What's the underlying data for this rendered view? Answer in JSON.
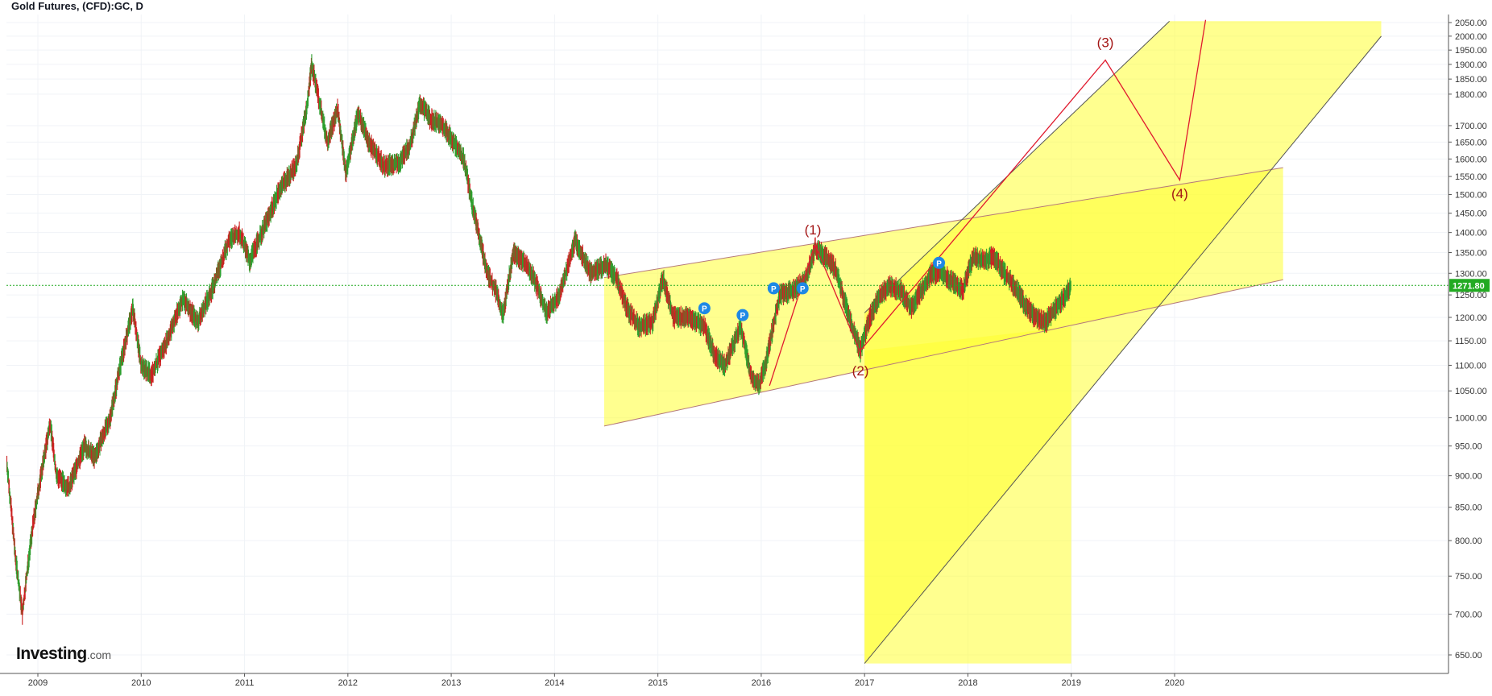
{
  "chart_data": {
    "type": "line",
    "title": "Gold Futures, (CFD):GC, D",
    "x_ticks": [
      "2009",
      "2010",
      "2011",
      "2012",
      "2013",
      "2014",
      "2015",
      "2016",
      "2017",
      "2018",
      "2019",
      "2020"
    ],
    "y_ticks": [
      "650.00",
      "700.00",
      "750.00",
      "800.00",
      "850.00",
      "900.00",
      "950.00",
      "1000.00",
      "1050.00",
      "1100.00",
      "1150.00",
      "1200.00",
      "1250.00",
      "1300.00",
      "1350.00",
      "1400.00",
      "1450.00",
      "1500.00",
      "1550.00",
      "1600.00",
      "1650.00",
      "1700.00",
      "1800.00",
      "1850.00",
      "1900.00",
      "1950.00",
      "2000.00",
      "2050.00"
    ],
    "xlim": [
      2008.7,
      2022.5
    ],
    "ylim": [
      620,
      2060
    ],
    "current_price": 1271.8,
    "current_price_label": "1271.80",
    "grid": true,
    "series": [
      {
        "values": [
          [
            2008.7,
            920
          ],
          [
            2008.78,
            780
          ],
          [
            2008.85,
            700
          ],
          [
            2008.95,
            820
          ],
          [
            2009.05,
            920
          ],
          [
            2009.12,
            990
          ],
          [
            2009.18,
            900
          ],
          [
            2009.3,
            880
          ],
          [
            2009.45,
            950
          ],
          [
            2009.55,
            930
          ],
          [
            2009.7,
            1000
          ],
          [
            2009.85,
            1150
          ],
          [
            2009.92,
            1220
          ],
          [
            2010.0,
            1100
          ],
          [
            2010.1,
            1080
          ],
          [
            2010.25,
            1150
          ],
          [
            2010.4,
            1240
          ],
          [
            2010.55,
            1190
          ],
          [
            2010.7,
            1270
          ],
          [
            2010.85,
            1380
          ],
          [
            2010.95,
            1400
          ],
          [
            2011.05,
            1330
          ],
          [
            2011.2,
            1420
          ],
          [
            2011.35,
            1520
          ],
          [
            2011.5,
            1580
          ],
          [
            2011.6,
            1750
          ],
          [
            2011.65,
            1900
          ],
          [
            2011.72,
            1780
          ],
          [
            2011.8,
            1650
          ],
          [
            2011.9,
            1750
          ],
          [
            2011.98,
            1560
          ],
          [
            2012.1,
            1740
          ],
          [
            2012.2,
            1650
          ],
          [
            2012.35,
            1580
          ],
          [
            2012.5,
            1590
          ],
          [
            2012.6,
            1640
          ],
          [
            2012.7,
            1770
          ],
          [
            2012.8,
            1720
          ],
          [
            2012.92,
            1700
          ],
          [
            2013.0,
            1660
          ],
          [
            2013.12,
            1600
          ],
          [
            2013.22,
            1450
          ],
          [
            2013.28,
            1380
          ],
          [
            2013.35,
            1300
          ],
          [
            2013.45,
            1250
          ],
          [
            2013.5,
            1200
          ],
          [
            2013.6,
            1350
          ],
          [
            2013.7,
            1330
          ],
          [
            2013.8,
            1290
          ],
          [
            2013.92,
            1210
          ],
          [
            2014.05,
            1250
          ],
          [
            2014.2,
            1380
          ],
          [
            2014.35,
            1300
          ],
          [
            2014.5,
            1320
          ],
          [
            2014.6,
            1290
          ],
          [
            2014.7,
            1220
          ],
          [
            2014.82,
            1180
          ],
          [
            2014.95,
            1190
          ],
          [
            2015.05,
            1290
          ],
          [
            2015.15,
            1200
          ],
          [
            2015.3,
            1200
          ],
          [
            2015.45,
            1180
          ],
          [
            2015.55,
            1120
          ],
          [
            2015.65,
            1100
          ],
          [
            2015.8,
            1180
          ],
          [
            2015.9,
            1080
          ],
          [
            2015.98,
            1060
          ],
          [
            2016.05,
            1110
          ],
          [
            2016.18,
            1250
          ],
          [
            2016.3,
            1260
          ],
          [
            2016.42,
            1280
          ],
          [
            2016.52,
            1360
          ],
          [
            2016.62,
            1340
          ],
          [
            2016.72,
            1310
          ],
          [
            2016.85,
            1200
          ],
          [
            2016.96,
            1130
          ],
          [
            2017.05,
            1200
          ],
          [
            2017.15,
            1250
          ],
          [
            2017.25,
            1270
          ],
          [
            2017.35,
            1260
          ],
          [
            2017.45,
            1220
          ],
          [
            2017.55,
            1260
          ],
          [
            2017.65,
            1300
          ],
          [
            2017.75,
            1300
          ],
          [
            2017.85,
            1280
          ],
          [
            2017.95,
            1260
          ],
          [
            2018.05,
            1340
          ],
          [
            2018.15,
            1330
          ],
          [
            2018.25,
            1340
          ],
          [
            2018.35,
            1300
          ],
          [
            2018.45,
            1270
          ],
          [
            2018.55,
            1230
          ],
          [
            2018.65,
            1200
          ],
          [
            2018.75,
            1190
          ],
          [
            2018.85,
            1220
          ],
          [
            2018.92,
            1240
          ],
          [
            2019.0,
            1271.8
          ]
        ]
      }
    ],
    "annotations": [
      "(1)",
      "(2)",
      "(3)",
      "(4)"
    ],
    "markers": [
      "P",
      "P",
      "P",
      "P",
      "P"
    ],
    "colors": {
      "up": "#2e9e2e",
      "down": "#cc2222",
      "channel_fill": "#ffff33",
      "wave_line": "#e01a2e",
      "wave_label": "#a31515",
      "price_line": "#22aa22",
      "marker": "#1e88e5"
    }
  },
  "branding": {
    "logo": "Investing",
    "logo_suffix": ".com"
  }
}
